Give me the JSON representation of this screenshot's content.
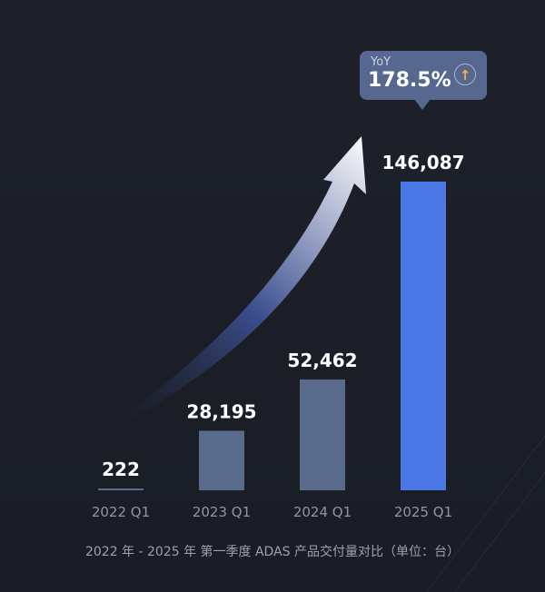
{
  "chart_data": {
    "type": "bar",
    "categories": [
      "2022 Q1",
      "2023 Q1",
      "2024 Q1",
      "2025 Q1"
    ],
    "values": [
      222,
      28195,
      52462,
      146087
    ],
    "value_labels": [
      "222",
      "28,195",
      "52,462",
      "146,087"
    ],
    "ylim": [
      0,
      146087
    ],
    "grid": false,
    "legend": "none",
    "highlight_index": 3,
    "caption": "2022 年 - 2025 年 第一季度 ADAS 产品交付量对比（单位：台）",
    "annotation": {
      "label": "YoY",
      "value": "178.5%",
      "icon": "arrow-up-icon",
      "icon_glyph": "↑"
    }
  },
  "colors": {
    "background": "#1c1f28",
    "bar": "#5a6a8a",
    "highlight_bar": "#4a78e6",
    "highlight_tick": "#5b8cff",
    "tick": "#8e96a8",
    "callout": "#56688f",
    "icon_accent": "#f3b23a"
  }
}
